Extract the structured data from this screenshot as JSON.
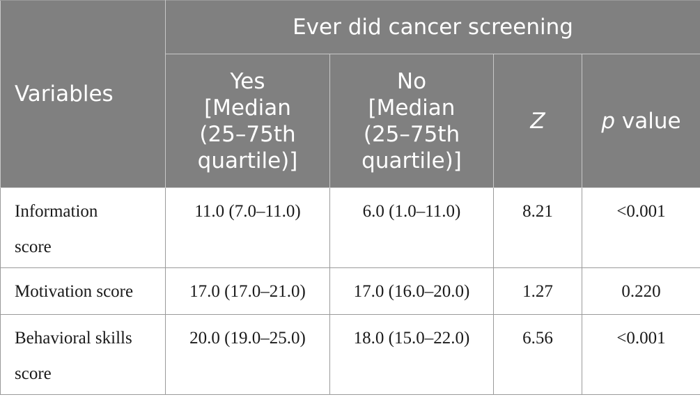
{
  "header": {
    "variables": "Variables",
    "group": "Ever did cancer screening",
    "yes": [
      "Yes",
      "[Median",
      "(25–75th",
      "quartile)]"
    ],
    "no": [
      "No",
      "[Median",
      "(25–75th",
      "quartile)]"
    ],
    "z": "Z",
    "p_italic": "p",
    "p_rest": " value"
  },
  "rows": [
    {
      "variable_lines": [
        "Information",
        "score"
      ],
      "yes": "11.0 (7.0–11.0)",
      "no": "6.0 (1.0–11.0)",
      "z": "8.21",
      "p": "<0.001"
    },
    {
      "variable_lines": [
        "Motivation score"
      ],
      "yes": "17.0 (17.0–21.0)",
      "no": "17.0 (16.0–20.0)",
      "z": "1.27",
      "p": "0.220"
    },
    {
      "variable_lines": [
        "Behavioral skills",
        "score"
      ],
      "yes": "20.0 (19.0–25.0)",
      "no": "18.0 (15.0–22.0)",
      "z": "6.56",
      "p": "<0.001"
    }
  ]
}
